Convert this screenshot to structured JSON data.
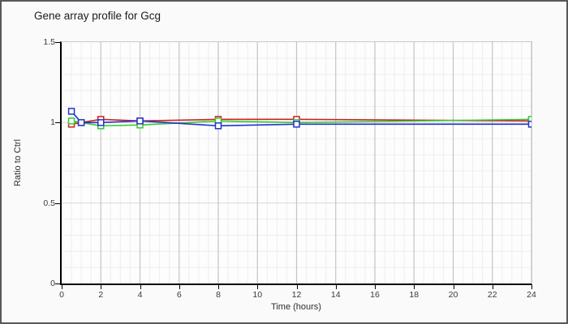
{
  "window": {
    "title": "Gene array profile for Gcg"
  },
  "chart_data": {
    "type": "line",
    "title": "Gene array profile for Gcg",
    "xlabel": "Time (hours)",
    "ylabel": "Ratio to Ctrl",
    "xlim": [
      0,
      24
    ],
    "ylim": [
      0,
      1.5
    ],
    "xticks": [
      0,
      2,
      4,
      6,
      8,
      10,
      12,
      14,
      16,
      18,
      20,
      22,
      24
    ],
    "yticks": [
      0,
      0.5,
      1,
      1.5
    ],
    "x_minor_step": 0.5,
    "y_minor_step": 0.1,
    "grid": true,
    "legend": "none",
    "marker": "open-square",
    "x": [
      0.5,
      1,
      2,
      4,
      8,
      12,
      24
    ],
    "series": [
      {
        "name": "series-red",
        "color": "#cc2222",
        "values": [
          0.99,
          1.0,
          1.02,
          1.01,
          1.02,
          1.02,
          1.01
        ]
      },
      {
        "name": "series-green",
        "color": "#33cc33",
        "values": [
          1.01,
          1.0,
          0.98,
          0.985,
          1.01,
          1.0,
          1.02
        ]
      },
      {
        "name": "series-blue",
        "color": "#2233cc",
        "values": [
          1.07,
          1.0,
          1.0,
          1.01,
          0.98,
          0.99,
          0.99
        ]
      }
    ],
    "grid_colors": {
      "minor": "#eeeeee",
      "medium_horizontal": "#d8d8d8",
      "major_vertical": "#c4c4c4"
    }
  }
}
